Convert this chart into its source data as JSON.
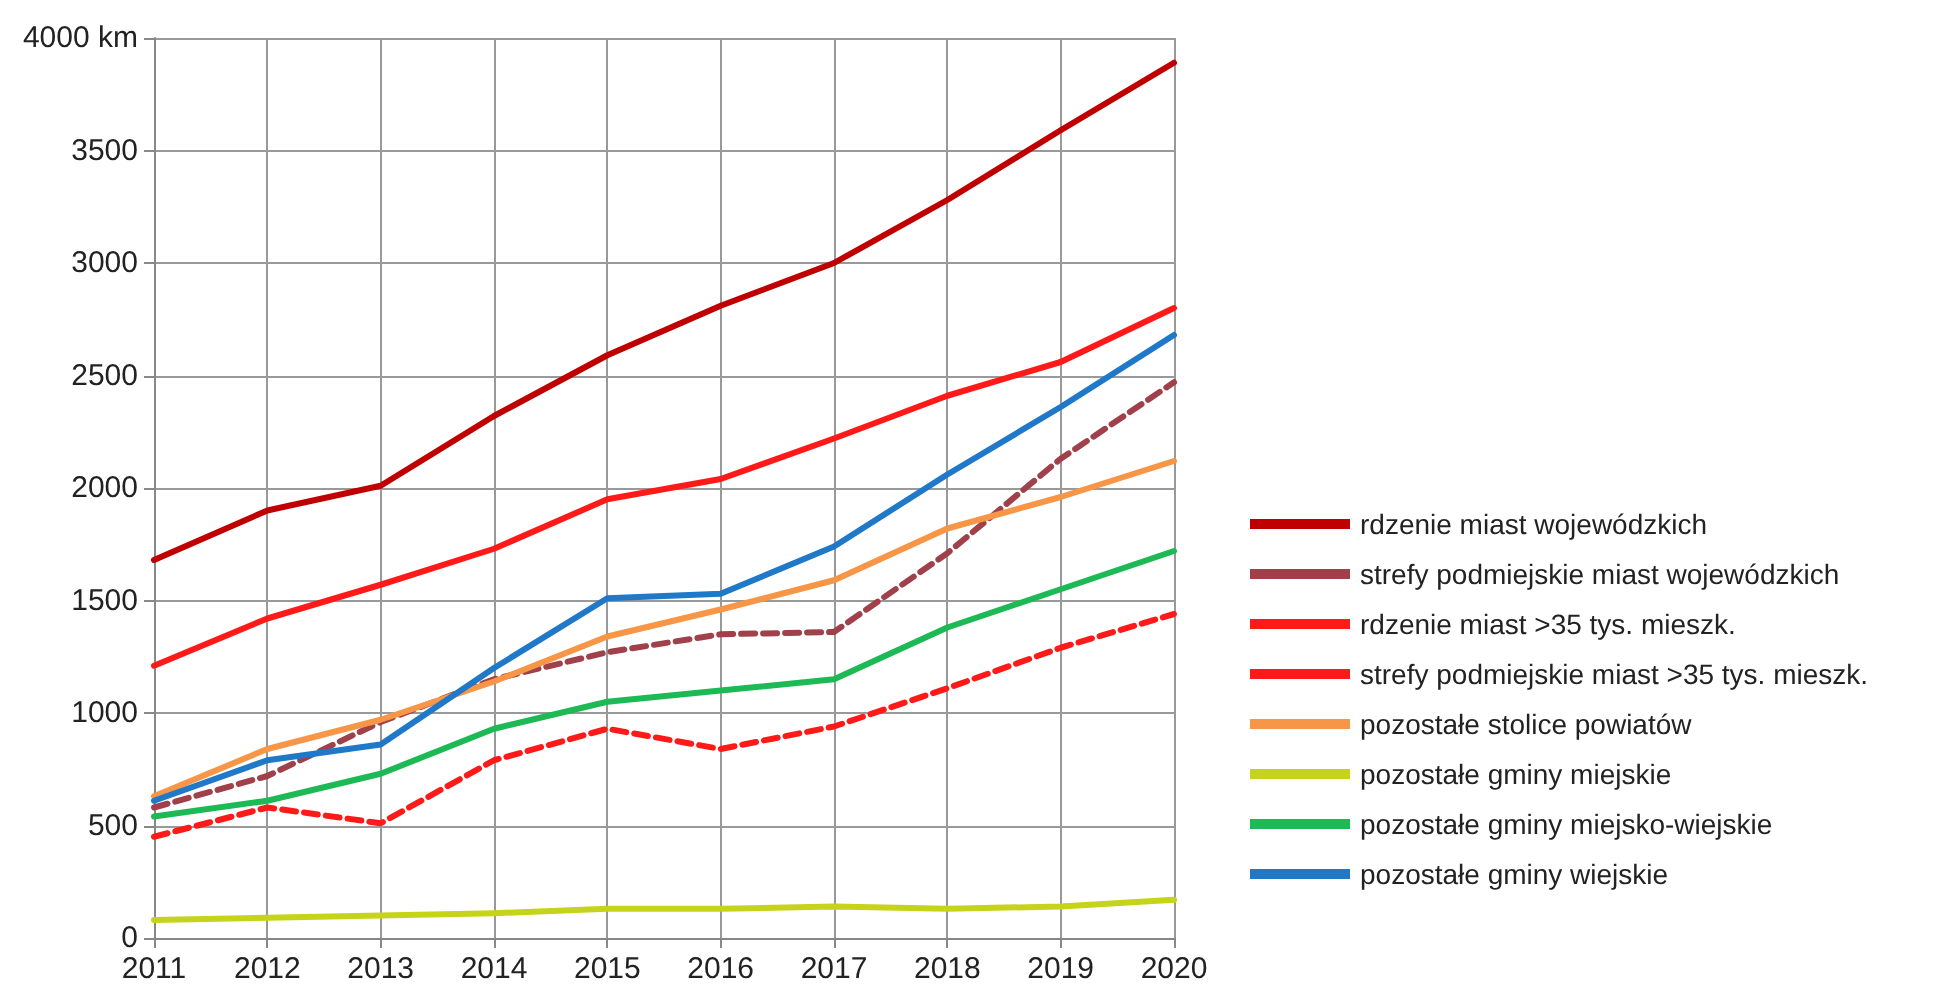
{
  "chart_data": {
    "type": "line",
    "categories": [
      "2011",
      "2012",
      "2013",
      "2014",
      "2015",
      "2016",
      "2017",
      "2018",
      "2019",
      "2020"
    ],
    "series": [
      {
        "name": "rdzenie miast wojewódzkich",
        "color": "#c00000",
        "line_style": "solid",
        "values": [
          1680,
          1900,
          2010,
          2320,
          2590,
          2810,
          3000,
          3280,
          3590,
          3890
        ]
      },
      {
        "name": "strefy podmiejskie miast wojewódzkich",
        "color": "#a0404a",
        "line_style": "dashed",
        "values": [
          580,
          720,
          960,
          1150,
          1270,
          1350,
          1360,
          1710,
          2130,
          2470
        ]
      },
      {
        "name": "rdzenie miast >35 tys. mieszk.",
        "color": "#ff1a1a",
        "line_style": "solid",
        "values": [
          1210,
          1420,
          1570,
          1730,
          1950,
          2040,
          2220,
          2410,
          2560,
          2800
        ]
      },
      {
        "name": "strefy podmiejskie miast >35 tys. mieszk.",
        "color": "#ff1a1a",
        "line_style": "dashed",
        "values": [
          450,
          580,
          510,
          790,
          930,
          840,
          940,
          1110,
          1290,
          1440
        ]
      },
      {
        "name": "pozostałe stolice powiatów",
        "color": "#f79646",
        "line_style": "solid",
        "values": [
          630,
          840,
          970,
          1140,
          1340,
          1460,
          1590,
          1820,
          1960,
          2120
        ]
      },
      {
        "name": "pozostałe gminy miejskie",
        "color": "#c5d41a",
        "line_style": "solid",
        "values": [
          80,
          90,
          100,
          110,
          130,
          130,
          140,
          130,
          140,
          170
        ]
      },
      {
        "name": "pozostałe gminy miejsko-wiejskie",
        "color": "#1db954",
        "line_style": "solid",
        "values": [
          540,
          610,
          730,
          930,
          1050,
          1100,
          1150,
          1380,
          1550,
          1720
        ]
      },
      {
        "name": "pozostałe gminy wiejskie",
        "color": "#1f78c8",
        "line_style": "solid",
        "values": [
          610,
          790,
          860,
          1200,
          1510,
          1530,
          1740,
          2060,
          2360,
          2680
        ]
      }
    ],
    "ylim": [
      0,
      4000
    ],
    "yticks": [
      0,
      500,
      1000,
      1500,
      2000,
      2500,
      3000,
      3500,
      {
        "value": 4000,
        "label": "4000 km"
      }
    ],
    "grid": true,
    "legend": "right",
    "marker": "none"
  }
}
